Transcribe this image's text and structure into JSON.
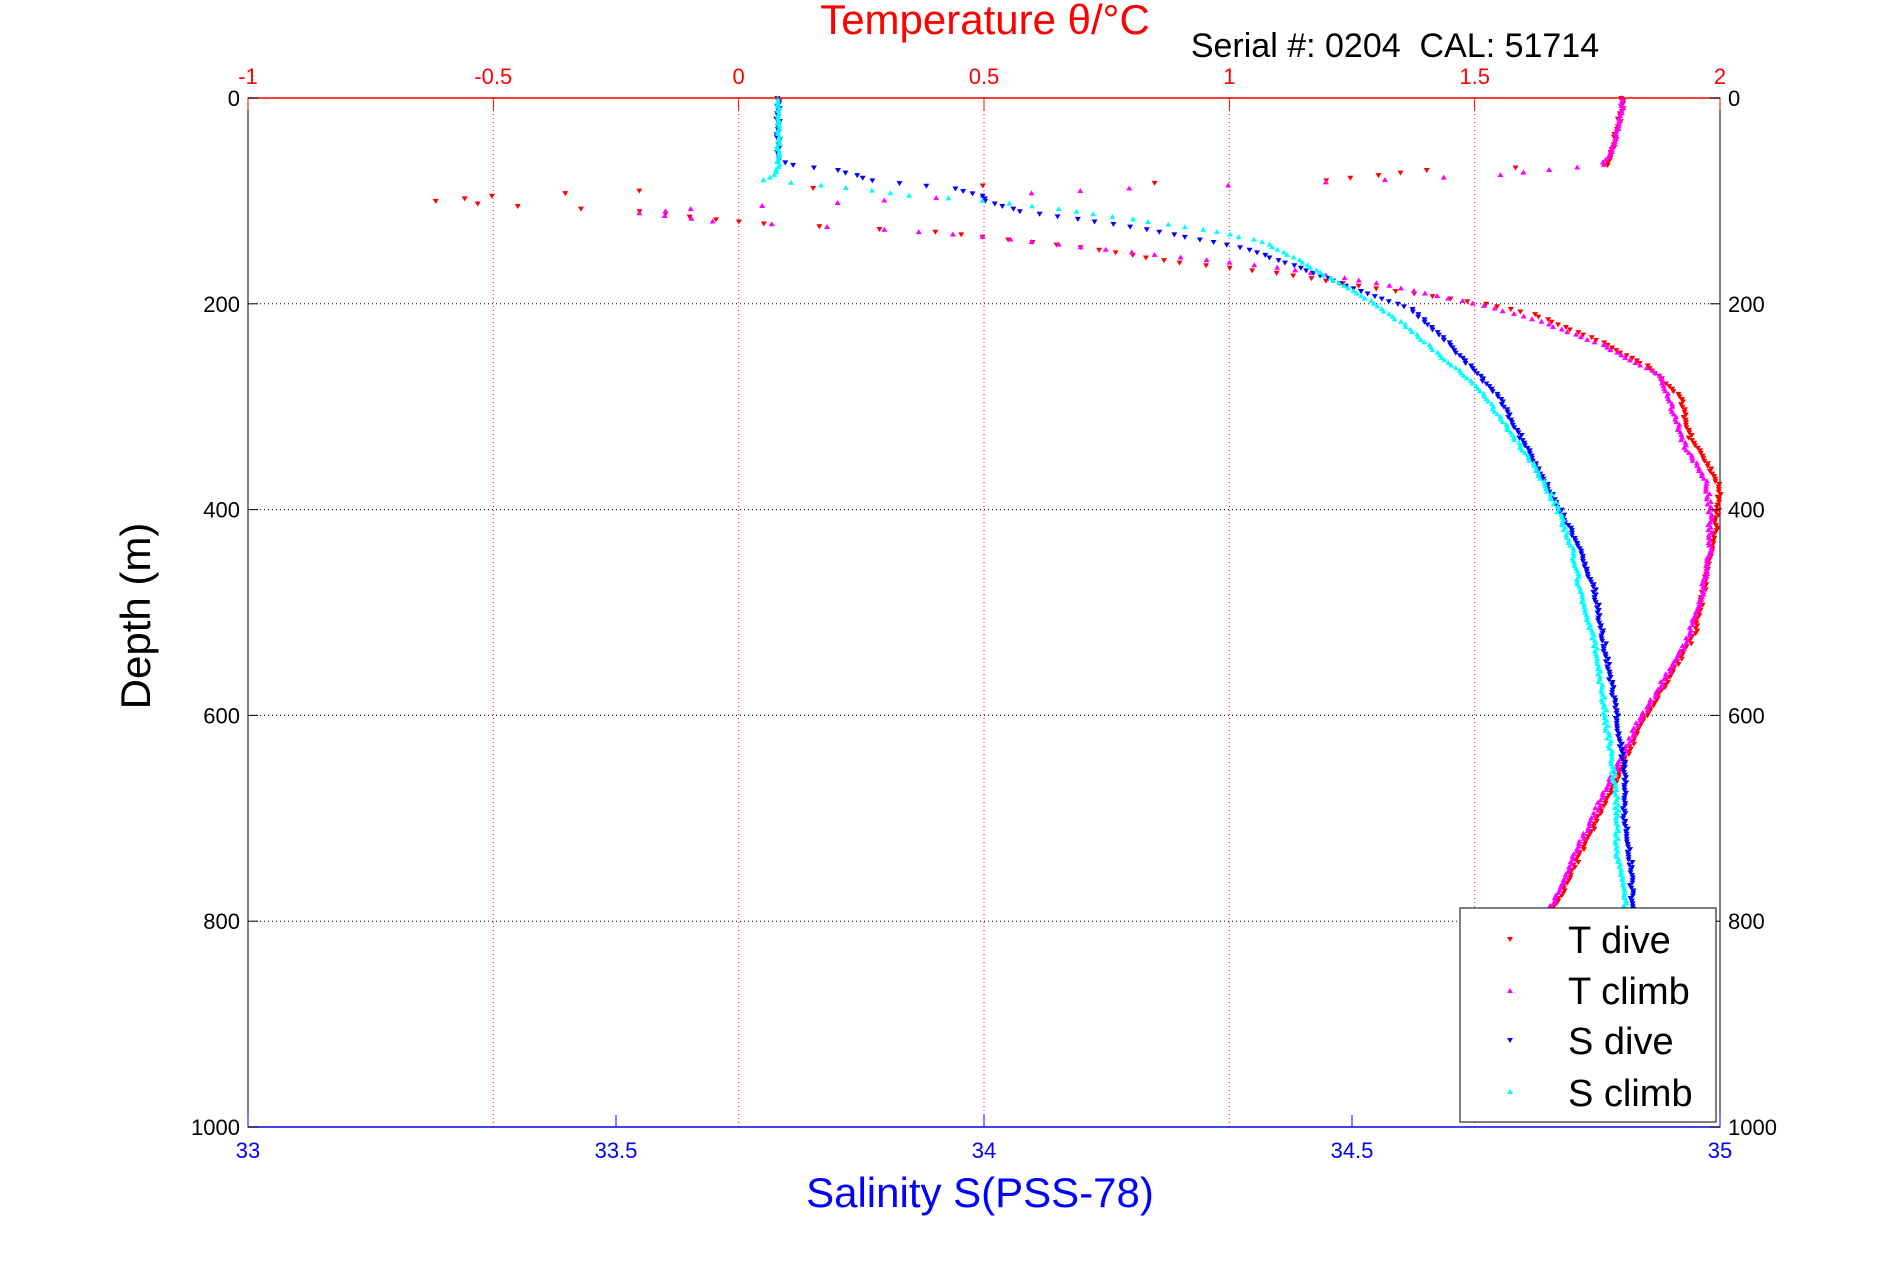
{
  "colors": {
    "temperature_axis": "#ff0000",
    "salinity_axis": "#0000ff",
    "grid_temperature": "#ff0000",
    "grid_depth": "#000000",
    "t_dive": "#ff0000",
    "t_climb": "#ff00ff",
    "s_dive": "#0000ff",
    "s_climb": "#00ffff"
  },
  "chart_data": {
    "type": "scatter",
    "title_top": "Temperature θ/°C",
    "header": "Serial #: 0204  CAL: 51714",
    "xlabel_bottom": "Salinity S(PSS-78)",
    "ylabel": "Depth (m)",
    "y_axis": {
      "range": [
        0,
        1000
      ],
      "reversed": true,
      "ticks": [
        "0",
        "200",
        "400",
        "600",
        "800",
        "1000"
      ]
    },
    "x_top": {
      "label": "Temperature θ/°C",
      "range": [
        -1,
        2
      ],
      "ticks": [
        "-1",
        "-0.5",
        "0",
        "0.5",
        "1",
        "1.5",
        "2"
      ],
      "grid": true
    },
    "x_bottom": {
      "label": "Salinity S(PSS-78)",
      "range": [
        33,
        35
      ],
      "ticks": [
        "33",
        "33.5",
        "34",
        "34.5",
        "35"
      ]
    },
    "legend": {
      "placement": "bottom-right",
      "entries": [
        "T dive",
        "T climb",
        "S dive",
        "S climb"
      ]
    },
    "series": [
      {
        "name": "T dive",
        "axis": "temperature",
        "marker": "triangle-down",
        "points": [
          [
            1.8,
            0
          ],
          [
            1.8,
            10
          ],
          [
            1.79,
            30
          ],
          [
            1.78,
            50
          ],
          [
            1.77,
            65
          ],
          [
            1.4,
            70
          ],
          [
            1.2,
            80
          ],
          [
            0.5,
            85
          ],
          [
            -0.2,
            90
          ],
          [
            -0.5,
            95
          ],
          [
            -0.62,
            100
          ],
          [
            -0.45,
            105
          ],
          [
            -0.2,
            110
          ],
          [
            -0.05,
            118
          ],
          [
            0.05,
            122
          ],
          [
            0.4,
            130
          ],
          [
            0.7,
            145
          ],
          [
            0.9,
            160
          ],
          [
            1.1,
            170
          ],
          [
            1.3,
            185
          ],
          [
            1.45,
            195
          ],
          [
            1.52,
            200
          ],
          [
            1.62,
            210
          ],
          [
            1.75,
            235
          ],
          [
            1.85,
            260
          ],
          [
            1.92,
            290
          ],
          [
            1.94,
            330
          ],
          [
            1.98,
            360
          ],
          [
            2.0,
            380
          ],
          [
            1.99,
            420
          ],
          [
            1.97,
            470
          ],
          [
            1.95,
            520
          ],
          [
            1.9,
            560
          ],
          [
            1.85,
            600
          ],
          [
            1.8,
            650
          ],
          [
            1.75,
            700
          ],
          [
            1.7,
            750
          ],
          [
            1.67,
            780
          ],
          [
            1.63,
            800
          ],
          [
            1.6,
            850
          ],
          [
            1.55,
            900
          ],
          [
            1.52,
            950
          ],
          [
            1.5,
            990
          ]
        ]
      },
      {
        "name": "T climb",
        "axis": "temperature",
        "marker": "triangle-up",
        "points": [
          [
            1.8,
            0
          ],
          [
            1.8,
            10
          ],
          [
            1.79,
            30
          ],
          [
            1.78,
            50
          ],
          [
            1.76,
            65
          ],
          [
            1.55,
            75
          ],
          [
            1.2,
            82
          ],
          [
            0.8,
            88
          ],
          [
            0.5,
            95
          ],
          [
            0.2,
            102
          ],
          [
            -0.1,
            108
          ],
          [
            -0.2,
            112
          ],
          [
            -0.05,
            120
          ],
          [
            0.3,
            128
          ],
          [
            0.5,
            135
          ],
          [
            0.7,
            145
          ],
          [
            0.9,
            155
          ],
          [
            1.1,
            165
          ],
          [
            1.3,
            180
          ],
          [
            1.45,
            195
          ],
          [
            1.52,
            202
          ],
          [
            1.62,
            215
          ],
          [
            1.76,
            240
          ],
          [
            1.88,
            270
          ],
          [
            1.9,
            300
          ],
          [
            1.93,
            340
          ],
          [
            1.97,
            370
          ],
          [
            1.98,
            400
          ],
          [
            1.98,
            440
          ],
          [
            1.96,
            490
          ],
          [
            1.93,
            530
          ],
          [
            1.88,
            570
          ],
          [
            1.83,
            610
          ],
          [
            1.78,
            660
          ],
          [
            1.73,
            710
          ],
          [
            1.68,
            760
          ],
          [
            1.64,
            800
          ],
          [
            1.6,
            850
          ],
          [
            1.56,
            900
          ],
          [
            1.52,
            950
          ],
          [
            1.5,
            990
          ]
        ]
      },
      {
        "name": "S dive",
        "axis": "salinity",
        "marker": "triangle-down",
        "points": [
          [
            33.72,
            0
          ],
          [
            33.72,
            20
          ],
          [
            33.72,
            40
          ],
          [
            33.72,
            60
          ],
          [
            33.74,
            65
          ],
          [
            33.8,
            70
          ],
          [
            33.85,
            80
          ],
          [
            33.96,
            88
          ],
          [
            34.0,
            95
          ],
          [
            34.0,
            100
          ],
          [
            34.05,
            110
          ],
          [
            34.2,
            125
          ],
          [
            34.35,
            145
          ],
          [
            34.45,
            170
          ],
          [
            34.52,
            190
          ],
          [
            34.58,
            205
          ],
          [
            34.62,
            230
          ],
          [
            34.66,
            260
          ],
          [
            34.7,
            290
          ],
          [
            34.73,
            330
          ],
          [
            34.76,
            370
          ],
          [
            34.79,
            410
          ],
          [
            34.81,
            440
          ],
          [
            34.83,
            480
          ],
          [
            34.84,
            520
          ],
          [
            34.85,
            560
          ],
          [
            34.86,
            600
          ],
          [
            34.87,
            650
          ],
          [
            34.87,
            700
          ],
          [
            34.88,
            750
          ],
          [
            34.88,
            790
          ]
        ]
      },
      {
        "name": "S climb",
        "axis": "salinity",
        "marker": "triangle-up",
        "points": [
          [
            33.72,
            0
          ],
          [
            33.72,
            20
          ],
          [
            33.72,
            40
          ],
          [
            33.72,
            60
          ],
          [
            33.72,
            72
          ],
          [
            33.7,
            80
          ],
          [
            33.78,
            85
          ],
          [
            33.85,
            90
          ],
          [
            33.9,
            95
          ],
          [
            34.0,
            100
          ],
          [
            34.1,
            108
          ],
          [
            34.2,
            118
          ],
          [
            34.3,
            128
          ],
          [
            34.38,
            140
          ],
          [
            34.42,
            155
          ],
          [
            34.47,
            175
          ],
          [
            34.52,
            195
          ],
          [
            34.57,
            220
          ],
          [
            34.62,
            250
          ],
          [
            34.67,
            280
          ],
          [
            34.71,
            320
          ],
          [
            34.75,
            360
          ],
          [
            34.78,
            400
          ],
          [
            34.8,
            440
          ],
          [
            34.81,
            480
          ],
          [
            34.83,
            530
          ],
          [
            34.84,
            580
          ],
          [
            34.85,
            630
          ],
          [
            34.86,
            680
          ],
          [
            34.86,
            730
          ],
          [
            34.87,
            780
          ],
          [
            34.87,
            850
          ],
          [
            34.87,
            920
          ],
          [
            34.87,
            990
          ]
        ]
      }
    ]
  }
}
